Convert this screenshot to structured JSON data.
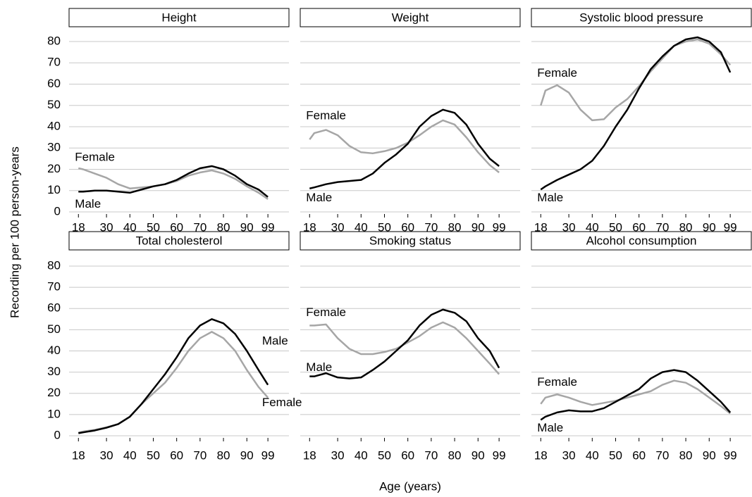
{
  "axis_titles": {
    "y": "Recording per 100 person-years",
    "x": "Age (years)"
  },
  "chart_data": [
    {
      "type": "line",
      "title": "Height",
      "x": [
        18,
        20,
        25,
        30,
        35,
        40,
        45,
        50,
        55,
        60,
        65,
        70,
        75,
        80,
        85,
        90,
        95,
        99
      ],
      "series": [
        {
          "name": "Female",
          "color": "#a6a6a6",
          "values": [
            20.5,
            20,
            18,
            16,
            13,
            11,
            11.5,
            12,
            13,
            14.5,
            17,
            18.5,
            19.5,
            18,
            15.5,
            12,
            9,
            6
          ]
        },
        {
          "name": "Male",
          "color": "#000000",
          "values": [
            9.5,
            9.5,
            10,
            10,
            9.5,
            9,
            10.5,
            12,
            13,
            15,
            18,
            20.5,
            21.5,
            20,
            17,
            13,
            10.5,
            7
          ]
        }
      ],
      "xlim": [
        14,
        108
      ],
      "xticks": [
        18,
        30,
        40,
        50,
        60,
        70,
        80,
        90,
        99
      ],
      "ylim": [
        0,
        80
      ],
      "yticks": [
        0,
        10,
        20,
        30,
        40,
        50,
        60,
        70,
        80
      ],
      "grid": true
    },
    {
      "type": "line",
      "title": "Weight",
      "x": [
        18,
        20,
        25,
        30,
        35,
        40,
        45,
        50,
        55,
        60,
        65,
        70,
        75,
        80,
        85,
        90,
        95,
        99
      ],
      "series": [
        {
          "name": "Female",
          "color": "#a6a6a6",
          "values": [
            34,
            37,
            38.5,
            36,
            31,
            28,
            27.5,
            28.5,
            30,
            32.5,
            36,
            40,
            43,
            41,
            35,
            28,
            22,
            18.5
          ]
        },
        {
          "name": "Male",
          "color": "#000000",
          "values": [
            11,
            11.5,
            13,
            14,
            14.5,
            15,
            18,
            23,
            27,
            32,
            40,
            45,
            48,
            46.5,
            41,
            32,
            25,
            21.5
          ]
        }
      ],
      "xlim": [
        14,
        108
      ],
      "xticks": [
        18,
        30,
        40,
        50,
        60,
        70,
        80,
        90,
        99
      ],
      "ylim": [
        0,
        80
      ],
      "yticks": [
        0,
        10,
        20,
        30,
        40,
        50,
        60,
        70,
        80
      ],
      "grid": true
    },
    {
      "type": "line",
      "title": "Systolic blood pressure",
      "x": [
        18,
        20,
        25,
        30,
        35,
        40,
        45,
        50,
        55,
        60,
        65,
        70,
        75,
        80,
        85,
        90,
        95,
        99
      ],
      "series": [
        {
          "name": "Female",
          "color": "#a6a6a6",
          "values": [
            50,
            57,
            59.5,
            56,
            48,
            43,
            43.5,
            49,
            53,
            59,
            66,
            72,
            78,
            80,
            81,
            79,
            74,
            69
          ]
        },
        {
          "name": "Male",
          "color": "#000000",
          "values": [
            10.5,
            12,
            15,
            17.5,
            20,
            24,
            31,
            40,
            48,
            58,
            67,
            73,
            78,
            81,
            82,
            80,
            75,
            65.5
          ]
        }
      ],
      "xlim": [
        14,
        108
      ],
      "xticks": [
        18,
        30,
        40,
        50,
        60,
        70,
        80,
        90,
        99
      ],
      "ylim": [
        0,
        80
      ],
      "yticks": [
        0,
        10,
        20,
        30,
        40,
        50,
        60,
        70,
        80
      ],
      "grid": true
    },
    {
      "type": "line",
      "title": "Total cholesterol",
      "x": [
        18,
        20,
        25,
        30,
        35,
        40,
        45,
        50,
        55,
        60,
        65,
        70,
        75,
        80,
        85,
        90,
        95,
        99
      ],
      "series": [
        {
          "name": "Female",
          "color": "#a6a6a6",
          "values": [
            1.5,
            2,
            2.8,
            4,
            5.5,
            9,
            15,
            20,
            25,
            32,
            40,
            46,
            49,
            46,
            40,
            31,
            23,
            18
          ]
        },
        {
          "name": "Male",
          "color": "#000000",
          "values": [
            1.2,
            1.6,
            2.5,
            3.8,
            5.5,
            9,
            15,
            22,
            29,
            37,
            46,
            52,
            55,
            53,
            48,
            40,
            31,
            24
          ]
        }
      ],
      "xlim": [
        14,
        108
      ],
      "xticks": [
        18,
        30,
        40,
        50,
        60,
        70,
        80,
        90,
        99
      ],
      "ylim": [
        0,
        80
      ],
      "yticks": [
        0,
        10,
        20,
        30,
        40,
        50,
        60,
        70,
        80
      ],
      "grid": true
    },
    {
      "type": "line",
      "title": "Smoking status",
      "x": [
        18,
        20,
        25,
        30,
        35,
        40,
        45,
        50,
        55,
        60,
        65,
        70,
        75,
        80,
        85,
        90,
        95,
        99
      ],
      "series": [
        {
          "name": "Female",
          "color": "#a6a6a6",
          "values": [
            52,
            52,
            52.5,
            46,
            41,
            38.5,
            38.5,
            39.5,
            41,
            44,
            47,
            51,
            53.5,
            51,
            46,
            40,
            34,
            29
          ]
        },
        {
          "name": "Male",
          "color": "#000000",
          "values": [
            28,
            28,
            29.5,
            27.5,
            27,
            27.5,
            31,
            35,
            40,
            45,
            52,
            57,
            59.5,
            58,
            54,
            46,
            40,
            32
          ]
        }
      ],
      "xlim": [
        14,
        108
      ],
      "xticks": [
        18,
        30,
        40,
        50,
        60,
        70,
        80,
        90,
        99
      ],
      "ylim": [
        0,
        80
      ],
      "yticks": [
        0,
        10,
        20,
        30,
        40,
        50,
        60,
        70,
        80
      ],
      "grid": true
    },
    {
      "type": "line",
      "title": "Alcohol consumption",
      "x": [
        18,
        20,
        25,
        30,
        35,
        40,
        45,
        50,
        55,
        60,
        65,
        70,
        75,
        80,
        85,
        90,
        95,
        99
      ],
      "series": [
        {
          "name": "Female",
          "color": "#a6a6a6",
          "values": [
            15,
            18,
            19.5,
            18,
            16,
            14.5,
            15.5,
            16.5,
            18,
            19.5,
            21,
            24,
            26,
            25,
            22,
            18,
            14,
            10.5
          ]
        },
        {
          "name": "Male",
          "color": "#000000",
          "values": [
            7.5,
            9,
            11,
            12,
            11.5,
            11.5,
            13,
            16,
            19,
            22,
            27,
            30,
            31,
            30,
            26,
            21,
            16,
            11
          ]
        }
      ],
      "xlim": [
        14,
        108
      ],
      "xticks": [
        18,
        30,
        40,
        50,
        60,
        70,
        80,
        90,
        99
      ],
      "ylim": [
        0,
        80
      ],
      "yticks": [
        0,
        10,
        20,
        30,
        40,
        50,
        60,
        70,
        80
      ],
      "grid": true
    }
  ]
}
